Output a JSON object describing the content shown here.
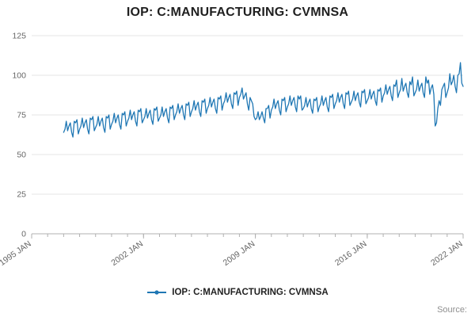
{
  "chart_data": {
    "type": "line",
    "title": "IOP: C:MANUFACTURING: CVMNSA",
    "legend": "IOP: C:MANUFACTURING: CVMNSA",
    "source": "Source:",
    "xlabel": "",
    "ylabel": "",
    "ylim": [
      0,
      125
    ],
    "y_ticks": [
      0,
      25,
      50,
      75,
      100,
      125
    ],
    "x_axis_range": [
      1995,
      2022
    ],
    "x_tick_years": [
      1995,
      2002,
      2009,
      2016,
      2022
    ],
    "x_tick_labels": [
      "1995 JAN",
      "2002 JAN",
      "2009 JAN",
      "2016 JAN",
      "2022 JAN"
    ],
    "grid": true,
    "legend_position": "bottom-center",
    "colors": {
      "line": "#1f77b4",
      "grid": "#e6e6e6",
      "axis": "#b0b0b0",
      "tick_text": "#666666"
    },
    "series": [
      {
        "name": "IOP: C:MANUFACTURING: CVMNSA",
        "start_year": 1997,
        "points_per_year": 12,
        "values": [
          64,
          66,
          71,
          65,
          68,
          70,
          64,
          61,
          71,
          70,
          72,
          63,
          66,
          68,
          73,
          67,
          70,
          72,
          66,
          63,
          73,
          72,
          74,
          65,
          67,
          69,
          74,
          68,
          71,
          73,
          67,
          64,
          74,
          73,
          75,
          66,
          69,
          71,
          76,
          70,
          73,
          75,
          69,
          66,
          76,
          75,
          77,
          68,
          71,
          73,
          78,
          72,
          75,
          77,
          71,
          68,
          78,
          77,
          79,
          70,
          72,
          74,
          79,
          73,
          76,
          78,
          72,
          69,
          79,
          78,
          80,
          71,
          73,
          75,
          80,
          74,
          77,
          79,
          73,
          70,
          80,
          79,
          81,
          72,
          75,
          77,
          82,
          76,
          79,
          81,
          75,
          72,
          82,
          81,
          83,
          74,
          77,
          79,
          84,
          78,
          81,
          83,
          77,
          74,
          84,
          83,
          85,
          76,
          79,
          81,
          86,
          80,
          83,
          85,
          79,
          76,
          86,
          85,
          87,
          78,
          82,
          84,
          89,
          83,
          86,
          88,
          82,
          79,
          89,
          88,
          90,
          81,
          86,
          88,
          92,
          85,
          87,
          89,
          82,
          78,
          86,
          84,
          82,
          74,
          72,
          73,
          77,
          72,
          74,
          77,
          73,
          70,
          79,
          79,
          81,
          73,
          78,
          80,
          85,
          79,
          82,
          84,
          78,
          75,
          85,
          84,
          86,
          77,
          80,
          82,
          87,
          81,
          84,
          86,
          80,
          77,
          87,
          85,
          87,
          78,
          79,
          81,
          86,
          80,
          83,
          85,
          79,
          76,
          85,
          84,
          86,
          77,
          80,
          82,
          87,
          81,
          84,
          86,
          80,
          77,
          87,
          86,
          88,
          79,
          82,
          84,
          89,
          83,
          86,
          88,
          82,
          79,
          89,
          88,
          90,
          81,
          83,
          85,
          90,
          84,
          87,
          89,
          83,
          80,
          90,
          89,
          91,
          82,
          84,
          86,
          91,
          85,
          88,
          90,
          84,
          81,
          91,
          90,
          92,
          83,
          87,
          89,
          94,
          88,
          91,
          93,
          87,
          84,
          94,
          93,
          97,
          86,
          89,
          91,
          98,
          90,
          93,
          95,
          89,
          86,
          96,
          94,
          99,
          87,
          89,
          91,
          97,
          90,
          93,
          95,
          89,
          86,
          99,
          95,
          97,
          88,
          92,
          94,
          88,
          68,
          70,
          79,
          84,
          81,
          91,
          93,
          95,
          86,
          89,
          92,
          101,
          94,
          96,
          100,
          93,
          89,
          100,
          101,
          108,
          95,
          93
        ]
      }
    ]
  }
}
